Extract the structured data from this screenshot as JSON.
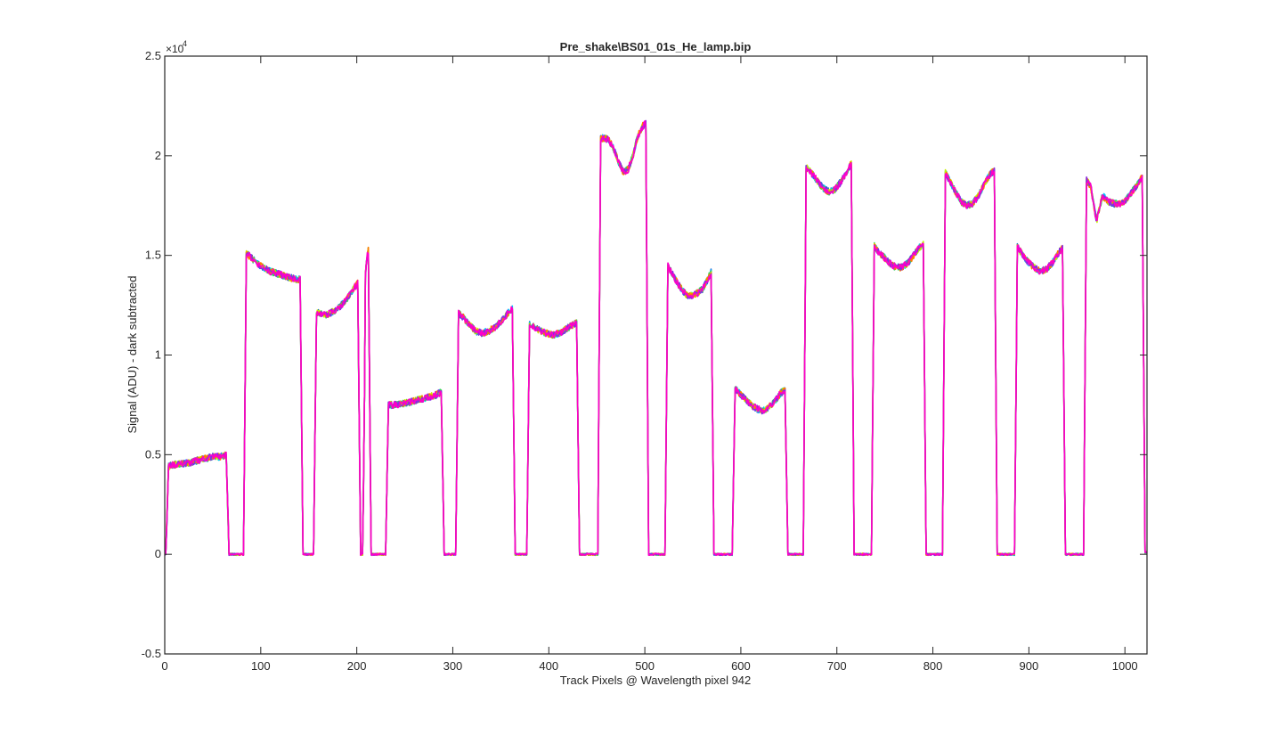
{
  "chart_data": {
    "type": "line",
    "title": "Pre_shake\\BS01_01s_He_lamp.bip",
    "xlabel": "Track Pixels @ Wavelength pixel 942",
    "ylabel": "Signal (ADU) - dark subtracted",
    "y_exponent_label": "×10",
    "y_exponent_power": "4",
    "xlim": [
      0,
      1023
    ],
    "ylim": [
      -0.5,
      2.5
    ],
    "y_scale_note": "values in units of 10^4 ADU",
    "x_ticks": [
      0,
      100,
      200,
      300,
      400,
      500,
      600,
      700,
      800,
      900,
      1000
    ],
    "x_tick_labels": [
      "0",
      "100",
      "200",
      "300",
      "400",
      "500",
      "600",
      "700",
      "800",
      "900",
      "1000"
    ],
    "y_ticks": [
      -0.5,
      0,
      0.5,
      1,
      1.5,
      2,
      2.5
    ],
    "y_tick_labels": [
      "-0.5",
      "0",
      "0.5",
      "1",
      "1.5",
      "2",
      "2.5"
    ],
    "grid": false,
    "legend": "none",
    "series_colors": [
      "#1f5fd6",
      "#00c8ff",
      "#3cd25a",
      "#c8f000",
      "#ff7a00",
      "#8a2be2",
      "#ff00c8"
    ],
    "segments": [
      {
        "start": 2,
        "end": 66,
        "values": [
          0.44,
          0.45,
          0.455,
          0.46,
          0.47,
          0.48,
          0.49,
          0.49,
          0.5
        ]
      },
      {
        "start": 83,
        "end": 143,
        "values": [
          1.52,
          1.49,
          1.46,
          1.44,
          1.42,
          1.41,
          1.4,
          1.39,
          1.38,
          1.38
        ]
      },
      {
        "start": 156,
        "end": 203,
        "values": [
          1.22,
          1.21,
          1.2,
          1.21,
          1.22,
          1.24,
          1.27,
          1.3,
          1.34,
          1.37
        ]
      },
      {
        "start": 207,
        "end": 214,
        "values": [
          1.04,
          1.45,
          1.52,
          1.54
        ]
      },
      {
        "start": 231,
        "end": 290,
        "values": [
          0.75,
          0.75,
          0.755,
          0.76,
          0.77,
          0.78,
          0.79,
          0.8,
          0.82
        ]
      },
      {
        "start": 304,
        "end": 364,
        "values": [
          1.22,
          1.19,
          1.15,
          1.12,
          1.11,
          1.12,
          1.14,
          1.17,
          1.21,
          1.24
        ]
      },
      {
        "start": 378,
        "end": 431,
        "values": [
          1.17,
          1.14,
          1.12,
          1.11,
          1.1,
          1.11,
          1.13,
          1.15,
          1.17
        ]
      },
      {
        "start": 452,
        "end": 503,
        "values": [
          2.08,
          2.09,
          2.08,
          2.04,
          1.97,
          1.92,
          1.93,
          2.0,
          2.1,
          2.15,
          2.17
        ]
      },
      {
        "start": 522,
        "end": 571,
        "values": [
          1.46,
          1.42,
          1.37,
          1.33,
          1.3,
          1.3,
          1.31,
          1.33,
          1.38,
          1.44
        ]
      },
      {
        "start": 592,
        "end": 648,
        "values": [
          0.84,
          0.81,
          0.78,
          0.75,
          0.73,
          0.72,
          0.74,
          0.77,
          0.81,
          0.83
        ]
      },
      {
        "start": 666,
        "end": 717,
        "values": [
          1.95,
          1.92,
          1.88,
          1.84,
          1.82,
          1.83,
          1.87,
          1.92,
          1.98
        ]
      },
      {
        "start": 737,
        "end": 792,
        "values": [
          1.56,
          1.52,
          1.49,
          1.46,
          1.44,
          1.44,
          1.46,
          1.5,
          1.54,
          1.56
        ]
      },
      {
        "start": 811,
        "end": 866,
        "values": [
          1.93,
          1.88,
          1.82,
          1.77,
          1.75,
          1.76,
          1.8,
          1.86,
          1.91,
          1.93
        ]
      },
      {
        "start": 886,
        "end": 937,
        "values": [
          1.56,
          1.51,
          1.47,
          1.44,
          1.42,
          1.43,
          1.46,
          1.51,
          1.55
        ]
      },
      {
        "start": 958,
        "end": 1020,
        "values": [
          1.89,
          1.85,
          1.67,
          1.8,
          1.77,
          1.76,
          1.76,
          1.78,
          1.82,
          1.86,
          1.91
        ]
      }
    ]
  }
}
